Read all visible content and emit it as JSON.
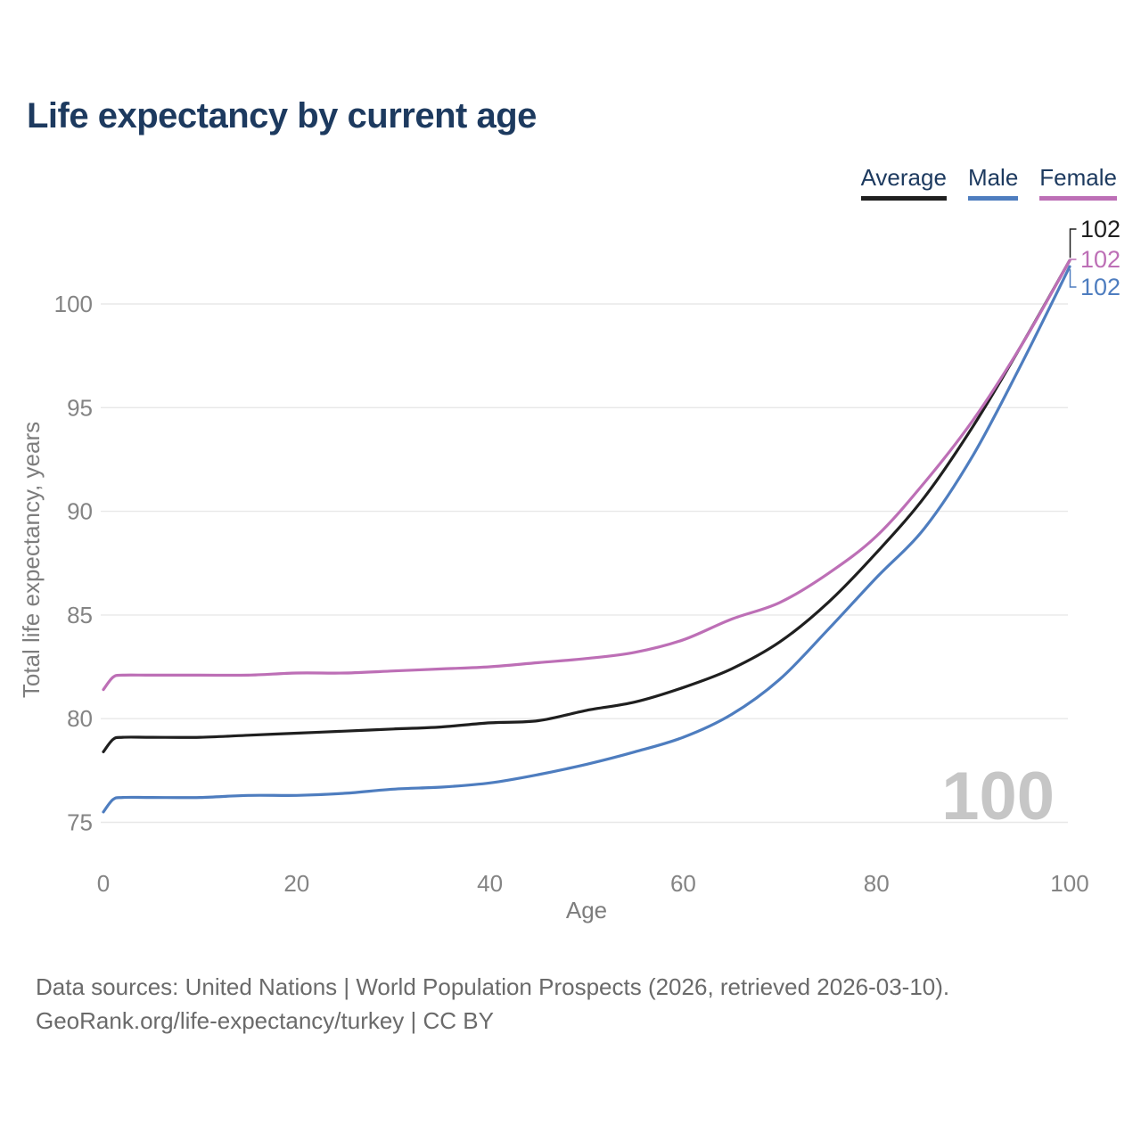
{
  "header": {
    "title": "Life expectancy by current age"
  },
  "legend": {
    "items": [
      {
        "label": "Average",
        "color": "#1f1f1f"
      },
      {
        "label": "Male",
        "color": "#4e7dbf"
      },
      {
        "label": "Female",
        "color": "#bd6fb6"
      }
    ]
  },
  "chart_data": {
    "type": "line",
    "title": "Life expectancy by current age",
    "xlabel": "Age",
    "ylabel": "Total life expectancy, years",
    "x": [
      0,
      1,
      2,
      5,
      10,
      15,
      20,
      25,
      30,
      35,
      40,
      45,
      50,
      55,
      60,
      65,
      70,
      75,
      80,
      85,
      90,
      95,
      100
    ],
    "series": [
      {
        "name": "Average",
        "color": "#1f1f1f",
        "end_label": "102",
        "values": [
          78.4,
          79.0,
          79.1,
          79.1,
          79.1,
          79.2,
          79.3,
          79.4,
          79.5,
          79.6,
          79.8,
          79.9,
          80.4,
          80.8,
          81.5,
          82.4,
          83.7,
          85.6,
          88.0,
          90.7,
          94.1,
          98.0,
          102.1
        ]
      },
      {
        "name": "Male",
        "color": "#4e7dbf",
        "end_label": "102",
        "values": [
          75.5,
          76.1,
          76.2,
          76.2,
          76.2,
          76.3,
          76.3,
          76.4,
          76.6,
          76.7,
          76.9,
          77.3,
          77.8,
          78.4,
          79.1,
          80.2,
          81.9,
          84.3,
          86.8,
          89.2,
          92.7,
          97.1,
          101.8
        ]
      },
      {
        "name": "Female",
        "color": "#bd6fb6",
        "end_label": "102",
        "values": [
          81.4,
          82.0,
          82.1,
          82.1,
          82.1,
          82.1,
          82.2,
          82.2,
          82.3,
          82.4,
          82.5,
          82.7,
          82.9,
          83.2,
          83.8,
          84.8,
          85.6,
          87.0,
          88.8,
          91.4,
          94.4,
          98.0,
          102.1
        ]
      }
    ],
    "xticks": [
      "0",
      "20",
      "40",
      "60",
      "80",
      "100"
    ],
    "yticks": [
      "75",
      "80",
      "85",
      "90",
      "95",
      "100"
    ],
    "xlim": [
      0,
      100
    ],
    "ylim": [
      75,
      102.5
    ],
    "grid": true,
    "legend_position": "top-right",
    "watermark": "100"
  },
  "footer": {
    "line1": "Data sources: United Nations | World Population Prospects (2026, retrieved 2026-03-10).",
    "line2": "GeoRank.org/life-expectancy/turkey | CC BY"
  },
  "colors": {
    "title_text": "#1d3a5f",
    "gridline": "#e8e8e8",
    "tick_text": "#848484",
    "axis_title_text": "#7d7d7d",
    "footer_text": "#6a6a6a",
    "watermark": "#c6c6c6"
  }
}
